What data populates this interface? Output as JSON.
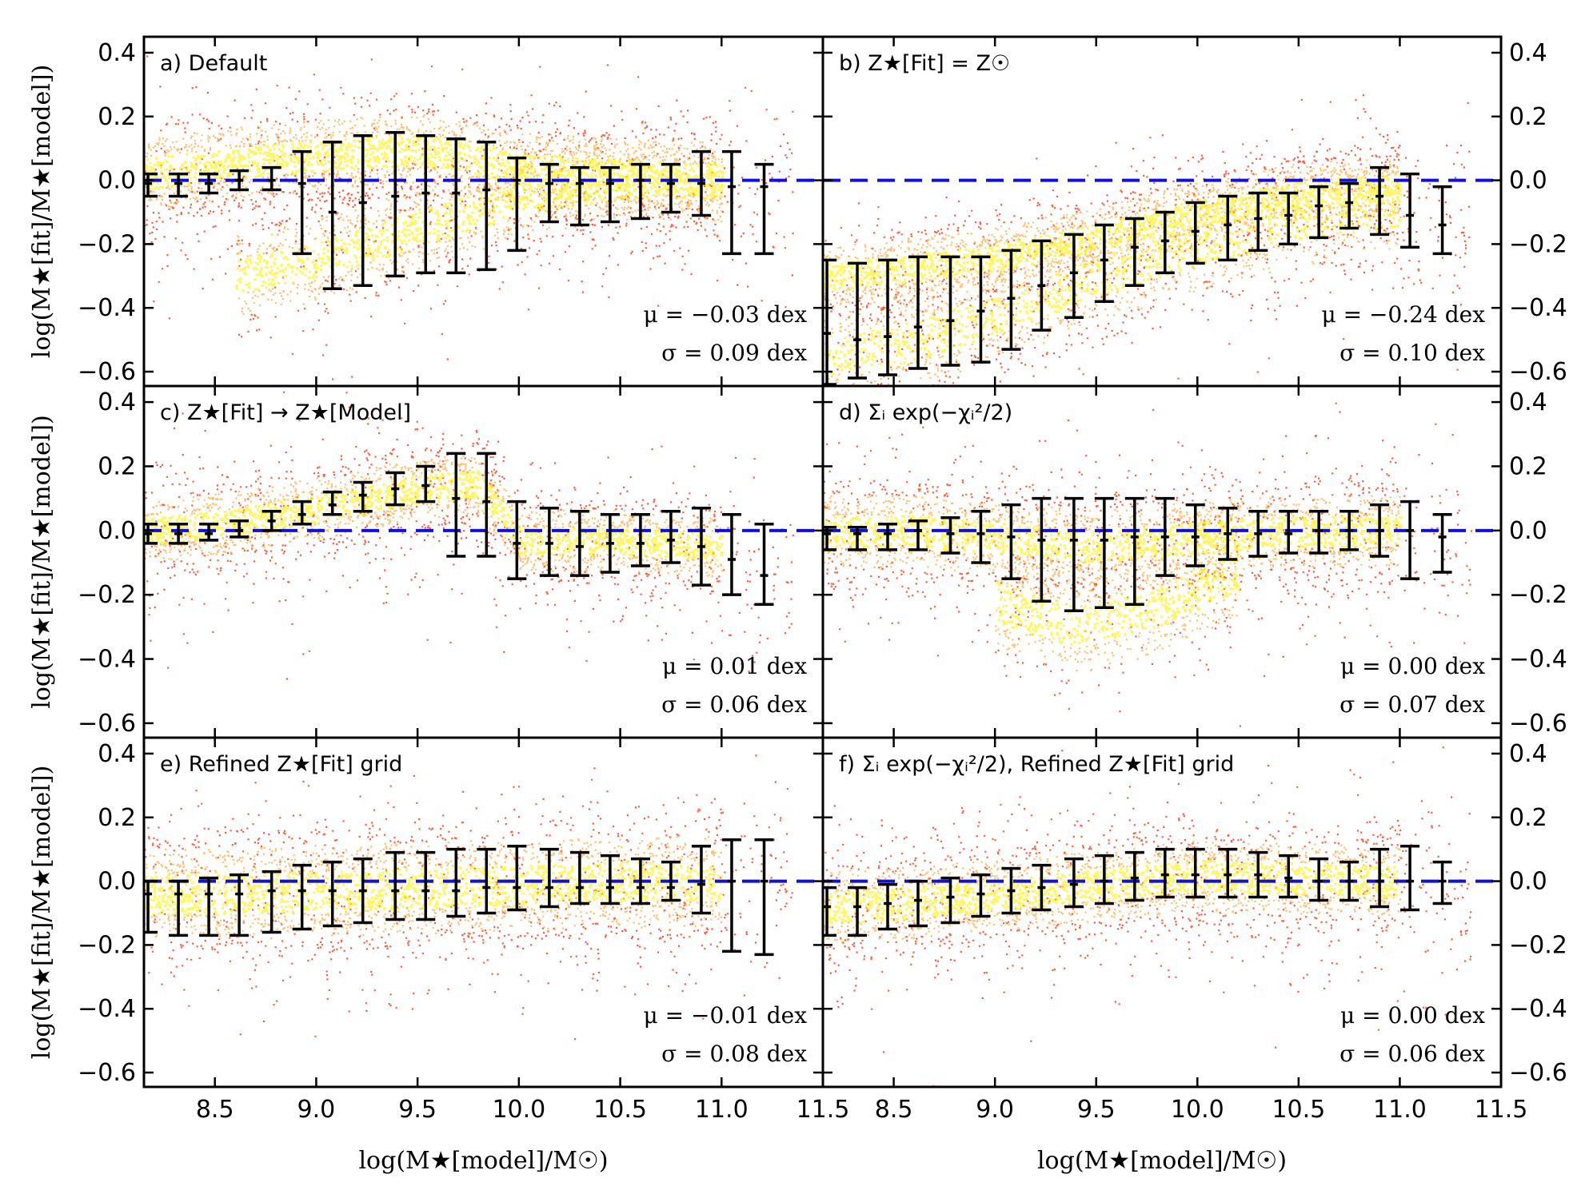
{
  "figure": {
    "xlabel": "log(M★[model]/M☉)",
    "ylabel": "log(M★[fit]/M★[model])",
    "xlim": [
      8.15,
      11.5
    ],
    "ylim": [
      -0.645,
      0.45
    ],
    "xticks": [
      8.5,
      9.0,
      9.5,
      10.0,
      10.5,
      11.0,
      11.5
    ],
    "xtick_labels": [
      "8.5",
      "9.0",
      "9.5",
      "10.0",
      "10.5",
      "11.0",
      "11.5"
    ],
    "yticks": [
      0.4,
      0.2,
      0.0,
      -0.2,
      -0.4,
      -0.6
    ],
    "ytick_labels": [
      "0.4",
      "0.2",
      "0.0",
      "−0.2",
      "−0.4",
      "−0.6"
    ],
    "colors": {
      "errorbar": "#000000",
      "reference_line": "#1010d8",
      "scatter_outer": "#ff2a00",
      "scatter_mid": "#ff8c00",
      "scatter_core": "#ffee00"
    }
  },
  "chart_data": [
    {
      "type": "scatter",
      "panel": "a",
      "label": "a) Default",
      "mu_text": "μ = −0.03 dex",
      "sigma_text": "σ = 0.09 dex",
      "mu": -0.03,
      "sigma": 0.09,
      "reference_line_y": 0.0,
      "x": [
        8.17,
        8.32,
        8.47,
        8.62,
        8.78,
        8.93,
        9.08,
        9.23,
        9.39,
        9.54,
        9.69,
        9.84,
        9.99,
        10.15,
        10.3,
        10.45,
        10.6,
        10.75,
        10.9,
        11.05,
        11.21
      ],
      "median": [
        -0.01,
        -0.01,
        -0.01,
        0.0,
        0.0,
        -0.01,
        -0.1,
        -0.07,
        -0.05,
        -0.04,
        -0.04,
        -0.03,
        0.0,
        -0.01,
        -0.01,
        -0.01,
        0.0,
        -0.01,
        -0.01,
        -0.02,
        -0.02
      ],
      "upper": [
        0.02,
        0.02,
        0.02,
        0.03,
        0.04,
        0.09,
        0.12,
        0.14,
        0.15,
        0.14,
        0.13,
        0.12,
        0.07,
        0.05,
        0.04,
        0.04,
        0.05,
        0.05,
        0.09,
        0.09,
        0.05
      ],
      "lower": [
        -0.05,
        -0.05,
        -0.04,
        -0.03,
        -0.03,
        -0.23,
        -0.34,
        -0.33,
        -0.3,
        -0.29,
        -0.29,
        -0.28,
        -0.22,
        -0.13,
        -0.14,
        -0.13,
        -0.12,
        -0.1,
        -0.11,
        -0.23,
        -0.23
      ],
      "density_bands": [
        {
          "x": [
            8.15,
            8.5,
            9.0,
            9.5,
            10.0,
            10.5,
            11.0
          ],
          "y": [
            0.02,
            0.05,
            0.08,
            0.1,
            0.04,
            0.02,
            0.0
          ],
          "width": 0.07,
          "weight": 3
        },
        {
          "x": [
            8.6,
            9.0,
            9.5,
            10.0,
            10.5,
            11.0
          ],
          "y": [
            -0.3,
            -0.25,
            -0.15,
            -0.05,
            0.0,
            0.0
          ],
          "width": 0.08,
          "weight": 2
        }
      ]
    },
    {
      "type": "scatter",
      "panel": "b",
      "label": "b) Z★[Fit] = Z☉",
      "mu_text": "μ = −0.24 dex",
      "sigma_text": "σ = 0.10 dex",
      "mu": -0.24,
      "sigma": 0.1,
      "reference_line_y": 0.0,
      "x": [
        8.17,
        8.32,
        8.47,
        8.62,
        8.78,
        8.93,
        9.08,
        9.23,
        9.39,
        9.54,
        9.69,
        9.84,
        9.99,
        10.15,
        10.3,
        10.45,
        10.6,
        10.75,
        10.9,
        11.05,
        11.21
      ],
      "median": [
        -0.48,
        -0.5,
        -0.49,
        -0.46,
        -0.44,
        -0.41,
        -0.37,
        -0.33,
        -0.29,
        -0.25,
        -0.21,
        -0.19,
        -0.16,
        -0.14,
        -0.12,
        -0.11,
        -0.08,
        -0.07,
        -0.05,
        -0.11,
        -0.14
      ],
      "upper": [
        -0.25,
        -0.26,
        -0.25,
        -0.24,
        -0.24,
        -0.24,
        -0.22,
        -0.19,
        -0.17,
        -0.14,
        -0.12,
        -0.1,
        -0.07,
        -0.05,
        -0.04,
        -0.04,
        -0.02,
        -0.01,
        0.04,
        0.02,
        -0.02
      ],
      "lower": [
        -0.64,
        -0.62,
        -0.61,
        -0.59,
        -0.58,
        -0.57,
        -0.53,
        -0.47,
        -0.43,
        -0.38,
        -0.33,
        -0.29,
        -0.26,
        -0.25,
        -0.22,
        -0.2,
        -0.18,
        -0.15,
        -0.17,
        -0.21,
        -0.23
      ],
      "density_bands": [
        {
          "x": [
            8.15,
            8.5,
            9.0,
            9.5,
            10.0,
            10.5,
            11.0
          ],
          "y": [
            -0.3,
            -0.28,
            -0.24,
            -0.18,
            -0.1,
            -0.04,
            -0.02
          ],
          "width": 0.06,
          "weight": 3
        },
        {
          "x": [
            8.15,
            8.6,
            9.0,
            9.5,
            10.0,
            10.5,
            11.0
          ],
          "y": [
            -0.55,
            -0.5,
            -0.42,
            -0.3,
            -0.2,
            -0.12,
            -0.08
          ],
          "width": 0.09,
          "weight": 2
        }
      ]
    },
    {
      "type": "scatter",
      "panel": "c",
      "label": "c) Z★[Fit] → Z★[Model]",
      "mu_text": "μ = 0.01 dex",
      "sigma_text": "σ = 0.06 dex",
      "mu": 0.01,
      "sigma": 0.06,
      "reference_line_y": 0.0,
      "x": [
        8.17,
        8.32,
        8.47,
        8.62,
        8.78,
        8.93,
        9.08,
        9.23,
        9.39,
        9.54,
        9.69,
        9.84,
        9.99,
        10.15,
        10.3,
        10.45,
        10.6,
        10.75,
        10.9,
        11.05,
        11.21
      ],
      "median": [
        -0.01,
        -0.01,
        -0.01,
        0.0,
        0.03,
        0.05,
        0.08,
        0.11,
        0.13,
        0.14,
        0.1,
        0.09,
        -0.04,
        -0.04,
        -0.05,
        -0.04,
        -0.04,
        -0.03,
        -0.05,
        -0.09,
        -0.14
      ],
      "upper": [
        0.02,
        0.02,
        0.02,
        0.03,
        0.06,
        0.09,
        0.12,
        0.15,
        0.18,
        0.2,
        0.24,
        0.24,
        0.09,
        0.07,
        0.06,
        0.05,
        0.05,
        0.06,
        0.07,
        0.05,
        0.02
      ],
      "lower": [
        -0.04,
        -0.04,
        -0.03,
        -0.02,
        0.0,
        0.02,
        0.05,
        0.06,
        0.08,
        0.09,
        -0.08,
        -0.08,
        -0.15,
        -0.14,
        -0.14,
        -0.13,
        -0.11,
        -0.1,
        -0.17,
        -0.2,
        -0.23
      ],
      "density_bands": [
        {
          "x": [
            8.15,
            8.5,
            9.0,
            9.5,
            9.8,
            10.0,
            10.5,
            11.0
          ],
          "y": [
            0.0,
            0.02,
            0.07,
            0.13,
            0.15,
            -0.03,
            -0.03,
            -0.05
          ],
          "width": 0.06,
          "weight": 3
        }
      ]
    },
    {
      "type": "scatter",
      "panel": "d",
      "label": "d) Σᵢ exp(−χᵢ²/2)",
      "mu_text": "μ = 0.00 dex",
      "sigma_text": "σ = 0.07 dex",
      "mu": 0.0,
      "sigma": 0.07,
      "reference_line_y": 0.0,
      "x": [
        8.17,
        8.32,
        8.47,
        8.62,
        8.78,
        8.93,
        9.08,
        9.23,
        9.39,
        9.54,
        9.69,
        9.84,
        9.99,
        10.15,
        10.3,
        10.45,
        10.6,
        10.75,
        10.9,
        11.05,
        11.21
      ],
      "median": [
        -0.01,
        -0.01,
        -0.01,
        0.0,
        -0.01,
        -0.01,
        -0.02,
        -0.03,
        -0.03,
        -0.03,
        -0.02,
        -0.02,
        -0.02,
        -0.01,
        -0.01,
        -0.01,
        0.0,
        0.0,
        0.0,
        0.0,
        -0.02
      ],
      "upper": [
        0.01,
        0.01,
        0.02,
        0.03,
        0.04,
        0.06,
        0.08,
        0.1,
        0.1,
        0.1,
        0.1,
        0.1,
        0.08,
        0.07,
        0.06,
        0.06,
        0.06,
        0.06,
        0.08,
        0.09,
        0.05
      ],
      "lower": [
        -0.06,
        -0.06,
        -0.06,
        -0.06,
        -0.07,
        -0.1,
        -0.15,
        -0.22,
        -0.25,
        -0.24,
        -0.23,
        -0.14,
        -0.11,
        -0.09,
        -0.08,
        -0.07,
        -0.07,
        -0.06,
        -0.08,
        -0.15,
        -0.13
      ],
      "density_bands": [
        {
          "x": [
            8.15,
            8.6,
            9.0,
            9.5,
            10.0,
            10.5,
            11.0
          ],
          "y": [
            0.0,
            0.0,
            -0.02,
            -0.05,
            -0.02,
            0.0,
            0.0
          ],
          "width": 0.07,
          "weight": 3
        },
        {
          "x": [
            9.0,
            9.4,
            9.8,
            10.2
          ],
          "y": [
            -0.22,
            -0.3,
            -0.24,
            -0.12
          ],
          "width": 0.09,
          "weight": 1
        }
      ]
    },
    {
      "type": "scatter",
      "panel": "e",
      "label": "e) Refined Z★[Fit] grid",
      "mu_text": "μ = −0.01 dex",
      "sigma_text": "σ = 0.08 dex",
      "mu": -0.01,
      "sigma": 0.08,
      "reference_line_y": 0.0,
      "x": [
        8.17,
        8.32,
        8.47,
        8.62,
        8.78,
        8.93,
        9.08,
        9.23,
        9.39,
        9.54,
        9.69,
        9.84,
        9.99,
        10.15,
        10.3,
        10.45,
        10.6,
        10.75,
        10.9,
        11.05,
        11.21
      ],
      "median": [
        -0.04,
        -0.04,
        -0.04,
        -0.04,
        -0.03,
        -0.03,
        -0.03,
        -0.03,
        -0.03,
        -0.03,
        -0.03,
        -0.02,
        -0.02,
        -0.02,
        -0.02,
        -0.02,
        -0.02,
        -0.02,
        -0.01,
        0.0,
        0.0
      ],
      "upper": [
        0.0,
        0.0,
        0.01,
        0.02,
        0.03,
        0.05,
        0.06,
        0.07,
        0.09,
        0.09,
        0.1,
        0.1,
        0.11,
        0.1,
        0.09,
        0.08,
        0.07,
        0.06,
        0.11,
        0.13,
        0.13
      ],
      "lower": [
        -0.16,
        -0.17,
        -0.17,
        -0.17,
        -0.16,
        -0.15,
        -0.14,
        -0.13,
        -0.12,
        -0.12,
        -0.11,
        -0.1,
        -0.09,
        -0.08,
        -0.07,
        -0.07,
        -0.07,
        -0.06,
        -0.1,
        -0.22,
        -0.23
      ],
      "density_bands": [
        {
          "x": [
            8.15,
            8.5,
            9.0,
            9.5,
            10.0,
            10.5,
            11.0
          ],
          "y": [
            -0.04,
            -0.04,
            -0.03,
            -0.02,
            -0.01,
            0.0,
            0.0
          ],
          "width": 0.09,
          "weight": 3
        }
      ]
    },
    {
      "type": "scatter",
      "panel": "f",
      "label": "f) Σᵢ exp(−χᵢ²/2), Refined Z★[Fit] grid",
      "mu_text": "μ = 0.00 dex",
      "sigma_text": "σ = 0.06 dex",
      "mu": 0.0,
      "sigma": 0.06,
      "reference_line_y": 0.0,
      "x": [
        8.17,
        8.32,
        8.47,
        8.62,
        8.78,
        8.93,
        9.08,
        9.23,
        9.39,
        9.54,
        9.69,
        9.84,
        9.99,
        10.15,
        10.3,
        10.45,
        10.6,
        10.75,
        10.9,
        11.05,
        11.21
      ],
      "median": [
        -0.08,
        -0.08,
        -0.07,
        -0.06,
        -0.05,
        -0.04,
        -0.03,
        -0.02,
        -0.01,
        0.0,
        0.01,
        0.02,
        0.02,
        0.02,
        0.02,
        0.01,
        0.0,
        0.0,
        0.0,
        0.0,
        0.0
      ],
      "upper": [
        -0.02,
        -0.02,
        -0.01,
        0.0,
        0.01,
        0.02,
        0.04,
        0.05,
        0.07,
        0.08,
        0.09,
        0.1,
        0.1,
        0.1,
        0.09,
        0.08,
        0.07,
        0.06,
        0.1,
        0.11,
        0.06
      ],
      "lower": [
        -0.17,
        -0.17,
        -0.15,
        -0.14,
        -0.13,
        -0.11,
        -0.1,
        -0.09,
        -0.08,
        -0.07,
        -0.06,
        -0.05,
        -0.05,
        -0.05,
        -0.05,
        -0.05,
        -0.06,
        -0.06,
        -0.08,
        -0.09,
        -0.07
      ],
      "density_bands": [
        {
          "x": [
            8.15,
            8.5,
            9.0,
            9.5,
            10.0,
            10.5,
            11.0
          ],
          "y": [
            -0.08,
            -0.07,
            -0.04,
            -0.01,
            0.02,
            0.01,
            0.0
          ],
          "width": 0.07,
          "weight": 3
        }
      ]
    }
  ]
}
